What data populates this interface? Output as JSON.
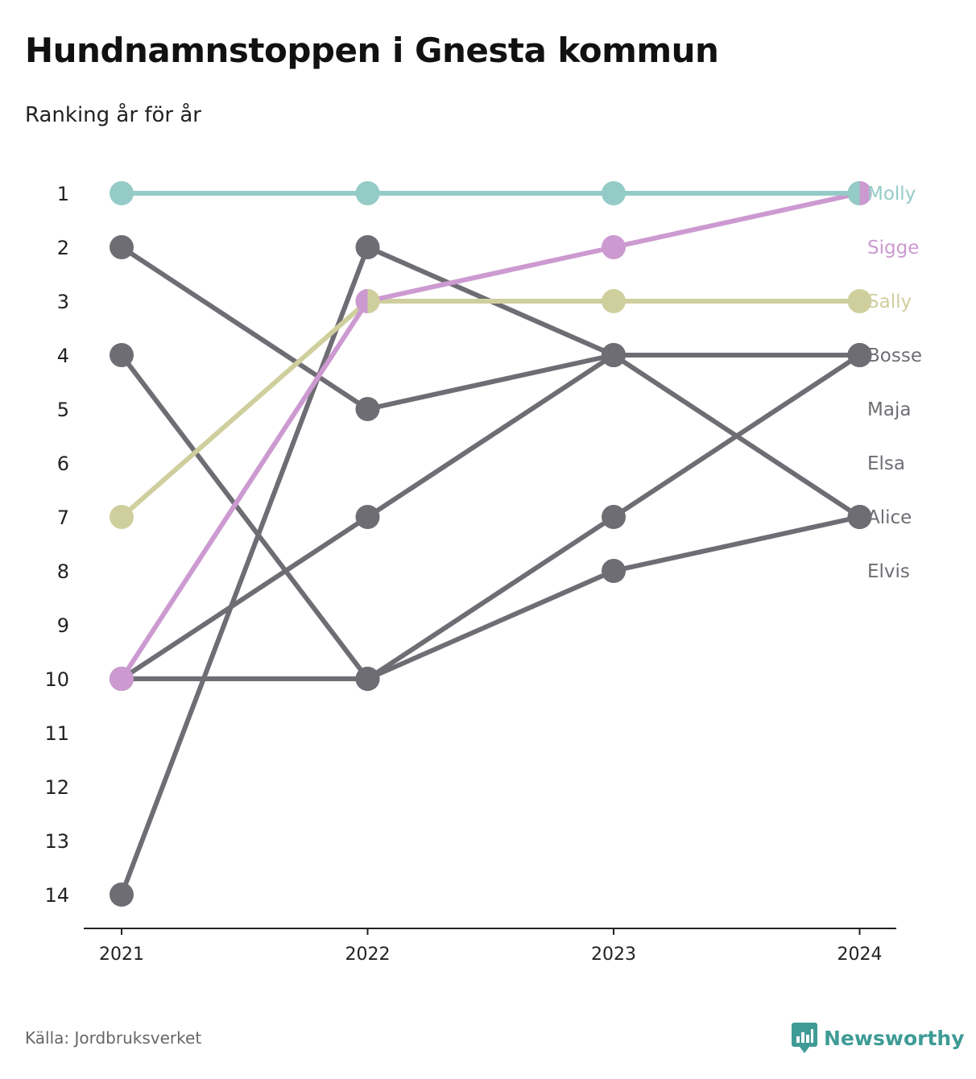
{
  "header": {
    "title": "Hundnamnstoppen i Gnesta kommun",
    "subtitle": "Ranking år för år"
  },
  "footer": {
    "source": "Källa: Jordbruksverket",
    "brand": "Newsworthy"
  },
  "icons": {
    "brand_logo": "newsworthy-logo-icon"
  },
  "colors": {
    "molly": "#94cbc7",
    "sigge": "#cc9ad0",
    "sally": "#cfcf9e",
    "other": "#6f6d74",
    "brand": "#3e9b95"
  },
  "chart_data": {
    "type": "line",
    "title": "Hundnamnstoppen i Gnesta kommun",
    "subtitle": "Ranking år för år",
    "x": [
      "2021",
      "2022",
      "2023",
      "2024"
    ],
    "y_ticks": [
      "1",
      "2",
      "3",
      "4",
      "5",
      "6",
      "7",
      "8",
      "9",
      "10",
      "11",
      "12",
      "13",
      "14"
    ],
    "ylim": [
      1,
      14
    ],
    "y_inverted": true,
    "grid": false,
    "series": [
      {
        "name": "Maja",
        "values": [
          2,
          5,
          4,
          4
        ],
        "color": "#6f6d74"
      },
      {
        "name": "Elsa",
        "values": [
          4,
          10,
          8,
          7
        ],
        "color": "#6f6d74"
      },
      {
        "name": "Bosse",
        "values": [
          14,
          2,
          4,
          7
        ],
        "color": "#6f6d74"
      },
      {
        "name": "Elvis",
        "values": [
          10,
          7,
          4,
          4
        ],
        "color": "#6f6d74"
      },
      {
        "name": "Alice",
        "values": [
          10,
          10,
          7,
          4
        ],
        "color": "#6f6d74"
      },
      {
        "name": "Sally",
        "values": [
          7,
          3,
          3,
          3
        ],
        "color": "#cfcf9e"
      },
      {
        "name": "Sigge",
        "values": [
          10,
          3,
          2,
          1
        ],
        "color": "#cc9ad0"
      },
      {
        "name": "Molly",
        "values": [
          1,
          1,
          1,
          1
        ],
        "color": "#94cbc7"
      }
    ],
    "end_labels": [
      {
        "name": "Molly",
        "rank": 1,
        "color": "#94cbc7"
      },
      {
        "name": "Sigge",
        "rank": 2,
        "color": "#cc9ad0"
      },
      {
        "name": "Sally",
        "rank": 3,
        "color": "#cfcf9e"
      },
      {
        "name": "Bosse",
        "rank": 4,
        "color": "#6f6d74"
      },
      {
        "name": "Maja",
        "rank": 5,
        "color": "#6f6d74"
      },
      {
        "name": "Elsa",
        "rank": 6,
        "color": "#6f6d74"
      },
      {
        "name": "Alice",
        "rank": 7,
        "color": "#6f6d74"
      },
      {
        "name": "Elvis",
        "rank": 8,
        "color": "#6f6d74"
      }
    ],
    "split_points": [
      {
        "x": "2022",
        "rank": 3,
        "left": "#cc9ad0",
        "right": "#cfcf9e"
      },
      {
        "x": "2024",
        "rank": 1,
        "left": "#94cbc7",
        "right": "#cc9ad0"
      }
    ]
  }
}
